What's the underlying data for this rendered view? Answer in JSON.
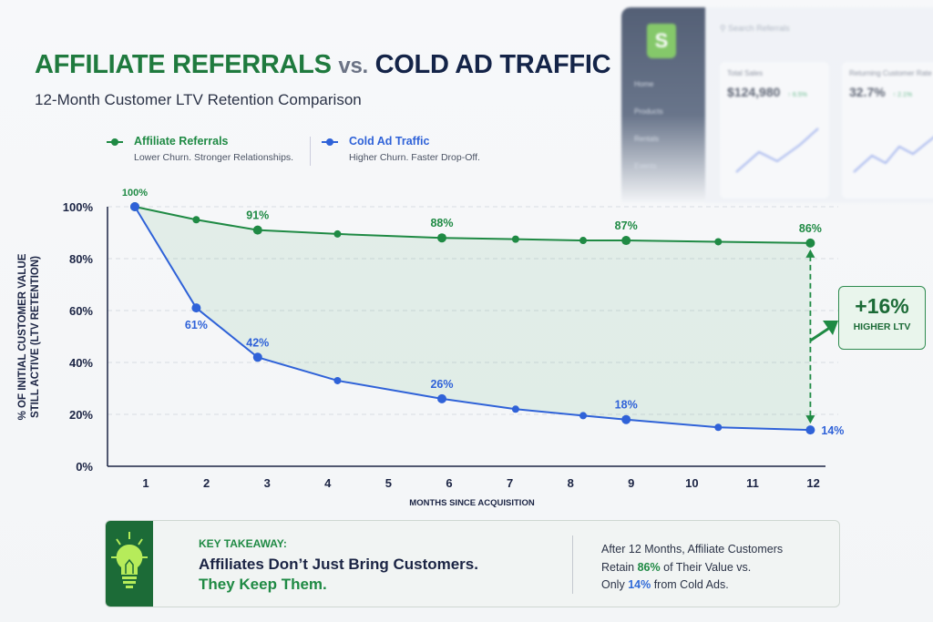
{
  "header": {
    "title_part1": "AFFILIATE REFERRALS",
    "title_vs": "vs.",
    "title_part2": "COLD AD TRAFFIC",
    "subtitle": "12-Month Customer LTV Retention Comparison"
  },
  "legend": [
    {
      "name": "Affiliate Referrals",
      "desc": "Lower Churn. Stronger Relationships.",
      "color": "#1f8a44"
    },
    {
      "name": "Cold Ad Traffic",
      "desc": "Higher Churn. Faster Drop-Off.",
      "color": "#2f62d8"
    }
  ],
  "dashboard": {
    "search_placeholder": "Search Referrals",
    "nav": [
      "Home",
      "Products",
      "Rentals",
      "Events"
    ],
    "cards": [
      {
        "title": "Total Sales",
        "value": "$124,980",
        "delta": "↑ 6.5%"
      },
      {
        "title": "Returning Customer Rate",
        "value": "32.7%",
        "delta": "↑ 2.1%"
      }
    ]
  },
  "chart_data": {
    "type": "line",
    "xlabel": "MONTHS SINCE ACQUISITION",
    "ylabel": [
      "% OF INITIAL CUSTOMER VALUE",
      "STILL ACTIVE (LTV RETENTION)"
    ],
    "xlim": [
      1,
      12
    ],
    "ylim": [
      0,
      100
    ],
    "xticks": [
      "1",
      "2",
      "3",
      "4",
      "5",
      "6",
      "7",
      "8",
      "9",
      "10",
      "11",
      "12"
    ],
    "yticks": [
      "0%",
      "20%",
      "40%",
      "60%",
      "80%",
      "100%"
    ],
    "grid": true,
    "legend_placement": "top",
    "x": [
      1,
      2,
      3,
      4.3,
      6,
      7.2,
      8.3,
      9,
      10.5,
      12
    ],
    "series": [
      {
        "name": "Affiliate Referrals",
        "color": "#1f8a44",
        "values": [
          100,
          95,
          91,
          89.5,
          88,
          87.5,
          87,
          87,
          86.5,
          86
        ],
        "labels": [
          {
            "i": 0,
            "text": "100%",
            "pos": "above"
          },
          {
            "i": 2,
            "text": "91%",
            "pos": "above"
          },
          {
            "i": 4,
            "text": "88%",
            "pos": "above"
          },
          {
            "i": 7,
            "text": "87%",
            "pos": "above"
          },
          {
            "i": 9,
            "text": "86%",
            "pos": "above"
          }
        ]
      },
      {
        "name": "Cold Ad Traffic",
        "color": "#2f62d8",
        "values": [
          100,
          61,
          42,
          33,
          26,
          22,
          19.5,
          18,
          15,
          14
        ],
        "labels": [
          {
            "i": 1,
            "text": "61%",
            "pos": "below"
          },
          {
            "i": 2,
            "text": "42%",
            "pos": "above"
          },
          {
            "i": 4,
            "text": "26%",
            "pos": "above"
          },
          {
            "i": 7,
            "text": "18%",
            "pos": "above"
          },
          {
            "i": 9,
            "text": "14%",
            "pos": "right"
          }
        ]
      }
    ],
    "annotation": {
      "value": "+16%",
      "text": "HIGHER LTV"
    }
  },
  "takeaway": {
    "kicker": "KEY TAKEAWAY:",
    "line1": "Affiliates Don’t Just Bring Customers.",
    "line2": "They Keep Them.",
    "r1": "After 12 Months, Affiliate Customers",
    "r2a": "Retain ",
    "r2b": "86%",
    "r2c": " of Their Value vs.",
    "r3a": "Only ",
    "r3b": "14%",
    "r3c": " from Cold Ads."
  }
}
